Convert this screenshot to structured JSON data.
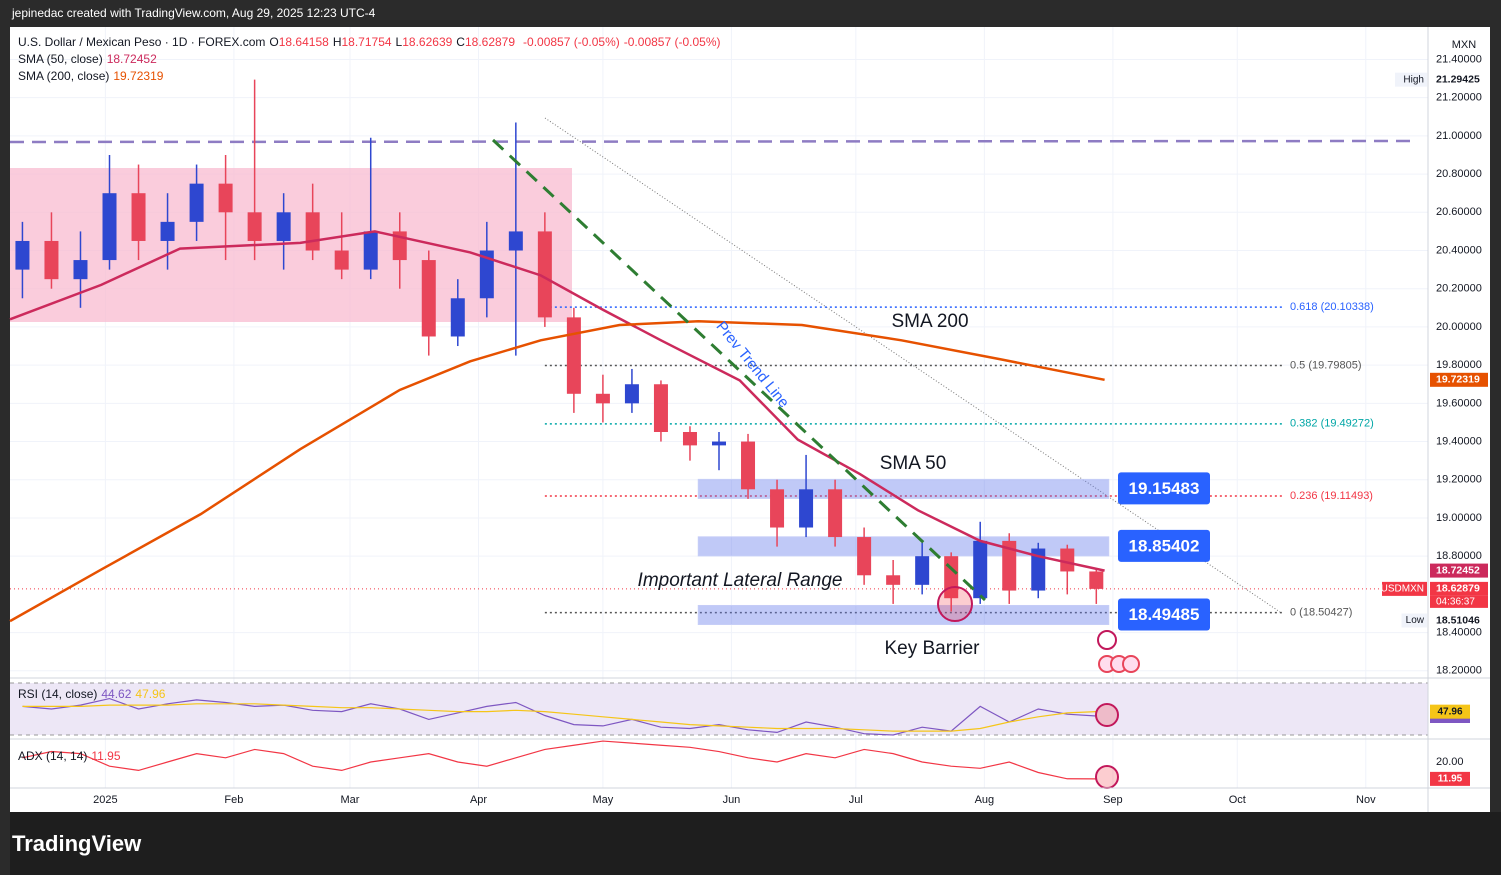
{
  "header": {
    "text": "jepinedac created with TradingView.com, Aug 29, 2025 12:23 UTC-4"
  },
  "footer": {
    "brand": "TradingView"
  },
  "chart_data": [
    {
      "type": "candlestick",
      "title": "U.S. Dollar / Mexican Peso · 1D · FOREX.com",
      "ohlc": [
        {
          "label": "O",
          "value": 18.64158
        },
        {
          "label": "H",
          "value": 18.71754
        },
        {
          "label": "L",
          "value": 18.62639
        },
        {
          "label": "C",
          "value": 18.62879
        }
      ],
      "change": [
        "-0.00857 (-0.05%)",
        "-0.00857 (-0.05%)"
      ],
      "currency": "MXN",
      "up_color": "#2e47d0",
      "down_color": "#e8455a",
      "x": [
        3,
        10,
        17,
        24,
        31,
        38,
        45,
        52,
        59,
        66,
        73,
        80,
        87,
        94,
        101,
        108,
        115,
        122,
        129,
        136,
        143,
        150,
        157,
        164,
        171,
        178,
        185,
        192,
        199,
        206,
        213,
        220,
        227,
        234,
        241,
        248,
        255,
        262
      ],
      "open": [
        20.3,
        20.45,
        20.25,
        20.35,
        20.7,
        20.45,
        20.55,
        20.75,
        20.6,
        20.45,
        20.6,
        20.4,
        20.3,
        20.5,
        20.35,
        19.95,
        20.15,
        20.4,
        20.5,
        20.05,
        19.65,
        19.6,
        19.7,
        19.45,
        19.38,
        19.4,
        19.15,
        18.95,
        19.15,
        18.9,
        18.7,
        18.65,
        18.8,
        18.58,
        18.88,
        18.62,
        18.84,
        18.72
      ],
      "high": [
        20.55,
        20.6,
        20.5,
        20.9,
        20.85,
        20.7,
        20.85,
        20.9,
        21.29425,
        20.7,
        20.75,
        20.6,
        20.99,
        20.6,
        20.4,
        20.25,
        20.55,
        21.07,
        20.6,
        20.1,
        19.75,
        19.78,
        19.72,
        19.48,
        19.45,
        19.44,
        19.2,
        19.33,
        19.2,
        18.95,
        18.78,
        18.87,
        18.82,
        18.98,
        18.92,
        18.87,
        18.86,
        18.73
      ],
      "low": [
        20.15,
        20.2,
        20.1,
        20.3,
        20.35,
        20.3,
        20.45,
        20.35,
        20.35,
        20.3,
        20.35,
        20.25,
        20.25,
        20.2,
        19.85,
        19.9,
        20.05,
        19.85,
        20.0,
        19.55,
        19.5,
        19.55,
        19.4,
        19.3,
        19.25,
        19.1,
        18.85,
        18.9,
        18.85,
        18.65,
        18.55,
        18.6,
        18.51046,
        18.55,
        18.55,
        18.58,
        18.6,
        18.55
      ],
      "close": [
        20.45,
        20.25,
        20.35,
        20.7,
        20.45,
        20.55,
        20.75,
        20.6,
        20.45,
        20.6,
        20.4,
        20.3,
        20.5,
        20.35,
        19.95,
        20.15,
        20.4,
        20.5,
        20.05,
        19.65,
        19.6,
        19.7,
        19.45,
        19.38,
        19.4,
        19.15,
        18.95,
        19.15,
        18.9,
        18.7,
        18.65,
        18.8,
        18.58,
        18.88,
        18.62,
        18.84,
        18.72,
        18.62879
      ],
      "lines": [
        {
          "name": "SMA (50, close)",
          "last": 18.72452,
          "color": "#cc2a5c",
          "x": [
            0,
            22,
            41,
            70,
            88,
            111,
            128,
            143,
            157,
            176,
            190,
            205,
            219,
            234,
            248,
            264
          ],
          "values": [
            20.04,
            20.22,
            20.41,
            20.44,
            20.5,
            20.39,
            20.27,
            20.09,
            19.93,
            19.72,
            19.41,
            19.23,
            19.04,
            18.88,
            18.8,
            18.72452
          ]
        },
        {
          "name": "SMA (200, close)",
          "last": 19.72319,
          "color": "#e65100",
          "x": [
            0,
            22,
            46,
            70,
            94,
            111,
            128,
            147,
            166,
            191,
            215,
            239,
            264
          ],
          "values": [
            18.46,
            18.73,
            19.02,
            19.36,
            19.67,
            19.82,
            19.93,
            20.01,
            20.03,
            20.01,
            19.93,
            19.83,
            19.72319
          ]
        }
      ],
      "fib": [
        {
          "value": 20.10338,
          "label": "0.618 (20.10338)",
          "color": "#2962ff"
        },
        {
          "value": 19.79805,
          "label": "0.5 (19.79805)",
          "color": "#555555"
        },
        {
          "value": 19.49272,
          "label": "0.382 (19.49272)",
          "color": "#00a6a6"
        },
        {
          "value": 19.11493,
          "label": "0.236 (19.11493)",
          "color": "#f23645"
        },
        {
          "value": 18.50427,
          "label": "0 (18.50427)",
          "color": "#555555"
        }
      ],
      "zones": [
        {
          "value": 19.15483
        },
        {
          "value": 18.85402
        },
        {
          "value": 18.49485
        }
      ],
      "price_tags": [
        {
          "name": "High",
          "value": 21.29425
        },
        {
          "value": 19.72319,
          "color": "#e65100"
        },
        {
          "value": 18.72452,
          "color": "#cc2a5c"
        },
        {
          "name": "USDMXN",
          "value": 18.62879,
          "color": "#f23645",
          "countdown": "04:36:37"
        },
        {
          "name": "Low",
          "value": 18.51046
        }
      ],
      "annotations": [
        "SMA 200",
        "SMA 50",
        "Prev Trend Line",
        "Important Lateral Range",
        "Key Barrier"
      ],
      "xlim": [
        0,
        342
      ],
      "ylim": [
        18.178,
        21.57
      ],
      "yticks": [
        {
          "value": 21.4,
          "label": "21.40000"
        },
        {
          "value": 21.2,
          "label": "21.20000"
        },
        {
          "value": 21,
          "label": "21.00000"
        },
        {
          "value": 20.8,
          "label": "20.80000"
        },
        {
          "value": 20.6,
          "label": "20.60000"
        },
        {
          "value": 20.4,
          "label": "20.40000"
        },
        {
          "value": 20.2,
          "label": "20.20000"
        },
        {
          "value": 20,
          "label": "20.00000"
        },
        {
          "value": 19.8,
          "label": "19.80000"
        },
        {
          "value": 19.6,
          "label": "19.60000"
        },
        {
          "value": 19.4,
          "label": "19.40000"
        },
        {
          "value": 19.2,
          "label": "19.20000"
        },
        {
          "value": 19,
          "label": "19.00000"
        },
        {
          "value": 18.8,
          "label": "18.80000"
        },
        {
          "value": 18.4,
          "label": "18.40000"
        },
        {
          "value": 18.2,
          "label": "18.20000"
        }
      ],
      "xticks": [
        {
          "value": 23,
          "label": "2025"
        },
        {
          "value": 54,
          "label": "Feb"
        },
        {
          "value": 82,
          "label": "Mar"
        },
        {
          "value": 113,
          "label": "Apr"
        },
        {
          "value": 143,
          "label": "May"
        },
        {
          "value": 174,
          "label": "Jun"
        },
        {
          "value": 204,
          "label": "Jul"
        },
        {
          "value": 235,
          "label": "Aug"
        },
        {
          "value": 266,
          "label": "Sep"
        },
        {
          "value": 296,
          "label": "Oct"
        },
        {
          "value": 327,
          "label": "Nov"
        }
      ]
    },
    {
      "type": "line",
      "title": "RSI (14, close)",
      "xlim": [
        0,
        342
      ],
      "ylim": [
        27.7,
        72.3
      ],
      "x": [
        3,
        10,
        17,
        24,
        31,
        38,
        45,
        52,
        59,
        66,
        73,
        80,
        87,
        94,
        101,
        108,
        115,
        122,
        129,
        136,
        143,
        150,
        157,
        164,
        171,
        178,
        185,
        192,
        199,
        206,
        213,
        220,
        227,
        234,
        241,
        248,
        255,
        262
      ],
      "series": [
        {
          "color": "#7e57c2",
          "last": 44.62,
          "values": [
            52,
            50,
            53,
            58,
            50,
            54,
            57,
            55,
            52,
            53,
            49,
            48,
            54,
            50,
            42,
            47,
            52,
            55,
            45,
            38,
            37,
            42,
            36,
            35,
            38,
            34,
            32,
            40,
            36,
            31,
            30,
            36,
            33,
            52,
            40,
            50,
            46,
            44.62
          ]
        },
        {
          "color": "#f5c518",
          "last": 47.96,
          "values": [
            52,
            52,
            52,
            53,
            53,
            53,
            54,
            54,
            54,
            53,
            52,
            51,
            51,
            50,
            49,
            48,
            48,
            49,
            48,
            46,
            44,
            42,
            40,
            38,
            37,
            36,
            35,
            35,
            35,
            34,
            33,
            33,
            33,
            35,
            40,
            44,
            47,
            47.96
          ]
        }
      ]
    },
    {
      "type": "line",
      "title": "ADX (14, 14)",
      "xlim": [
        0,
        342
      ],
      "ylim": [
        7.6,
        30.5
      ],
      "yticks": [
        {
          "value": 20,
          "label": "20.00"
        }
      ],
      "x": [
        3,
        10,
        17,
        24,
        31,
        38,
        45,
        52,
        59,
        66,
        73,
        80,
        87,
        94,
        101,
        108,
        115,
        122,
        129,
        136,
        143,
        150,
        157,
        164,
        171,
        178,
        185,
        192,
        199,
        206,
        213,
        220,
        227,
        234,
        241,
        248,
        255,
        262
      ],
      "series": [
        {
          "color": "#f23645",
          "last": 11.95,
          "values": [
            22,
            25,
            24,
            18,
            16,
            20,
            24,
            22,
            26,
            24,
            18,
            16,
            20,
            22,
            24,
            20,
            18,
            22,
            26,
            28,
            30,
            29,
            28,
            27,
            25,
            22,
            20,
            24,
            22,
            26,
            24,
            20,
            18,
            17,
            20,
            15,
            12,
            11.95
          ]
        }
      ]
    }
  ]
}
